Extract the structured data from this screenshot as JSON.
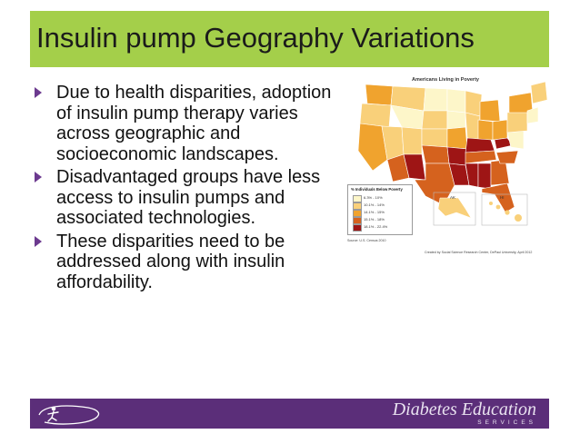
{
  "slide": {
    "title": "Insulin pump Geography Variations",
    "bullets": [
      {
        "text": "Due to health disparities, adoption of insulin pump therapy varies across geographic and socioeconomic landscapes."
      },
      {
        "text": "Disadvantaged groups have less access to insulin pumps and associated technologies."
      },
      {
        "text": "These disparities need to be addressed along with insulin affordability."
      }
    ]
  },
  "map": {
    "title": "Americans Living in Poverty",
    "legend_title": "% Individuals Below Poverty",
    "legend": [
      {
        "label": "6.3% - 10%",
        "color": "#fdf6c9"
      },
      {
        "label": "10.1% - 14%",
        "color": "#f9d07a"
      },
      {
        "label": "14.1% - 15%",
        "color": "#f0a32e"
      },
      {
        "label": "15.1% - 18%",
        "color": "#d5621e"
      },
      {
        "label": "18.1% - 22.4%",
        "color": "#9e1515"
      }
    ],
    "inset_alaska": "AK",
    "inset_hawaii": "HI",
    "source": "Source: U.S. Census 2010",
    "credit": "Created by Social Science Research Center, DePaul University, April 2012"
  },
  "footer": {
    "brand_name": "Diabetes Education",
    "brand_sub": "SERVICES"
  },
  "colors": {
    "title_bar": "#a4cf4a",
    "footer_bar": "#5b2e79",
    "bullet_arrow": "#6c3a8f"
  }
}
